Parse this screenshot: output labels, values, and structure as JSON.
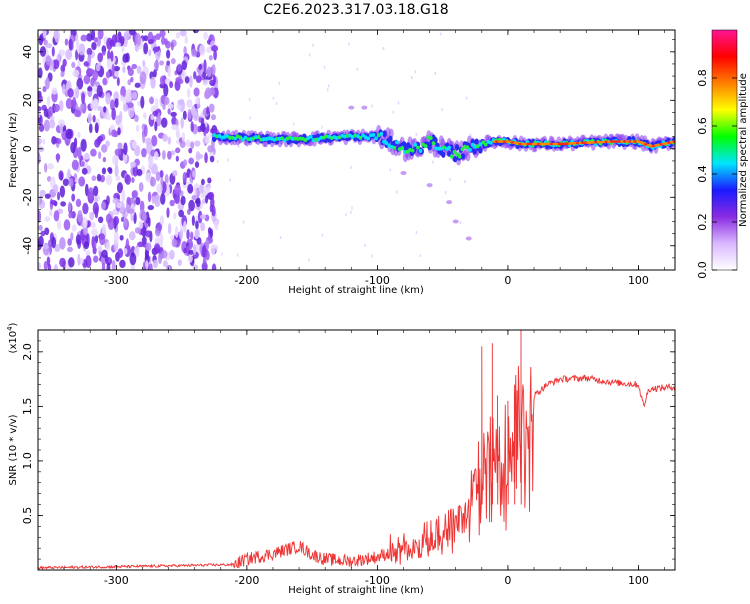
{
  "title": "C2E6.2023.317.03.18.G18",
  "chart_data": [
    {
      "type": "heatmap",
      "xlabel": "Height of straight line (km)",
      "ylabel": "Frequency (Hz)",
      "xlim": [
        -360,
        128
      ],
      "ylim": [
        -50,
        49
      ],
      "xticks": [
        -300,
        -200,
        -100,
        0,
        100
      ],
      "yticks": [
        -40,
        -20,
        0,
        20,
        40
      ],
      "grid": false,
      "colorbar": {
        "label": "Normalized spectral amplitude",
        "range": [
          0,
          1
        ],
        "ticks": [
          "0.0",
          "0.2",
          "0.4",
          "0.6",
          "0.8"
        ],
        "colors": [
          "#ffffff",
          "#d9b8ff",
          "#8a2be2",
          "#1a1aff",
          "#00e5ff",
          "#00ff00",
          "#ffff00",
          "#ff8000",
          "#ff0000",
          "#ff1493"
        ]
      },
      "ridge": {
        "x": [
          -225,
          -200,
          -180,
          -160,
          -140,
          -120,
          -100,
          -90,
          -80,
          -70,
          -60,
          -50,
          -40,
          -30,
          -20,
          -10,
          0,
          10,
          20,
          40,
          60,
          80,
          100,
          110,
          128
        ],
        "y": [
          5,
          4.5,
          4,
          4,
          4.5,
          5,
          5,
          3,
          0,
          0,
          3,
          0,
          -2,
          0,
          2,
          3,
          3,
          2,
          2,
          2,
          2.5,
          3,
          3,
          1,
          3
        ]
      }
    },
    {
      "type": "line",
      "xlabel": "Height of straight line (km)",
      "ylabel": "SNR (10 * v/v)",
      "ylabel_multiplier": "(x10",
      "ylabel_multiplier_exponent": "4",
      "ymultiplier_label_close": ")",
      "xlim": [
        -360,
        128
      ],
      "ylim": [
        0,
        2.2
      ],
      "xticks": [
        -300,
        -200,
        -100,
        0,
        100
      ],
      "yticks": [
        "0.5",
        "1.0",
        "1.5",
        "2.0"
      ],
      "grid": false,
      "color": "#ee3333",
      "series": [
        {
          "x": [
            -360,
            -300,
            -250,
            -210,
            -200,
            -180,
            -160,
            -150,
            -140,
            -120,
            -100,
            -80,
            -60,
            -40,
            -30,
            -20,
            -15,
            -10,
            -5,
            0,
            5,
            10,
            15,
            20,
            30,
            40,
            60,
            80,
            100,
            104,
            108,
            128
          ],
          "values": [
            0.02,
            0.03,
            0.04,
            0.05,
            0.1,
            0.15,
            0.22,
            0.14,
            0.1,
            0.08,
            0.12,
            0.2,
            0.3,
            0.45,
            0.6,
            0.8,
            1.1,
            1.3,
            1.0,
            1.2,
            1.4,
            1.45,
            1.5,
            1.6,
            1.7,
            1.75,
            1.76,
            1.72,
            1.7,
            1.5,
            1.66,
            1.68
          ]
        }
      ],
      "spikes": [
        {
          "x": -20,
          "y": 2.05
        },
        {
          "x": -12,
          "y": 2.08
        },
        {
          "x": -8,
          "y": 1.6
        },
        {
          "x": 0,
          "y": 1.55
        },
        {
          "x": 5,
          "y": 1.7
        },
        {
          "x": 10,
          "y": 2.22
        }
      ]
    }
  ]
}
